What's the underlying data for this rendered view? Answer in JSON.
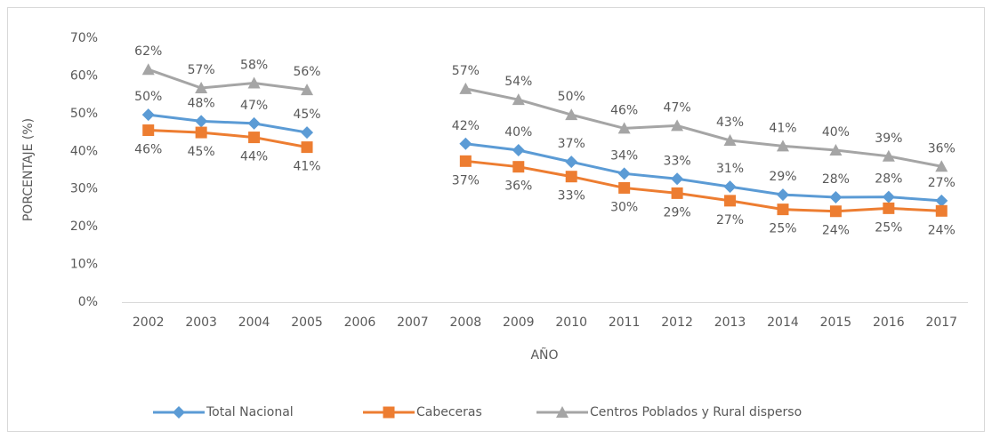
{
  "chart_data": {
    "type": "line",
    "y_label": "PORCENTAJE (%)",
    "x_label": "AÑO",
    "categories": [
      "2002",
      "2003",
      "2004",
      "2005",
      "2006",
      "2007",
      "2008",
      "2009",
      "2010",
      "2011",
      "2012",
      "2013",
      "2014",
      "2015",
      "2016",
      "2017"
    ],
    "ylim": [
      0,
      70
    ],
    "yticks": [
      {
        "value": 0,
        "label": "0%"
      },
      {
        "value": 10,
        "label": "10%"
      },
      {
        "value": 20,
        "label": "20%"
      },
      {
        "value": 30,
        "label": "30%"
      },
      {
        "value": 40,
        "label": "40%"
      },
      {
        "value": 50,
        "label": "50%"
      },
      {
        "value": 60,
        "label": "60%"
      },
      {
        "value": 70,
        "label": "70%"
      }
    ],
    "grid": false,
    "legend": "bottom",
    "series": [
      {
        "name": "Total Nacional",
        "color": "#5b9bd5",
        "marker": "diamond",
        "values": [
          49.7,
          48.0,
          47.4,
          45.0,
          null,
          null,
          42.0,
          40.3,
          37.2,
          34.1,
          32.7,
          30.6,
          28.5,
          27.8,
          27.9,
          26.9
        ],
        "value_labels": [
          "50%",
          "48%",
          "47%",
          "45%",
          null,
          null,
          "42%",
          "40%",
          "37%",
          "34%",
          "33%",
          "31%",
          "29%",
          "28%",
          "28%",
          "27%"
        ]
      },
      {
        "name": "Cabeceras",
        "color": "#ed7d31",
        "marker": "square",
        "values": [
          45.6,
          45.0,
          43.7,
          41.1,
          null,
          null,
          37.4,
          35.9,
          33.3,
          30.3,
          28.9,
          26.9,
          24.6,
          24.1,
          24.9,
          24.2
        ],
        "value_labels": [
          "46%",
          "45%",
          "44%",
          "41%",
          null,
          null,
          "37%",
          "36%",
          "33%",
          "30%",
          "29%",
          "27%",
          "25%",
          "24%",
          "25%",
          "24%"
        ]
      },
      {
        "name": "Centros Poblados y Rural disperso",
        "color": "#a5a5a5",
        "marker": "triangle",
        "values": [
          61.7,
          56.8,
          58.1,
          56.3,
          null,
          null,
          56.6,
          53.7,
          49.7,
          46.1,
          46.8,
          42.9,
          41.4,
          40.3,
          38.7,
          36.0
        ],
        "value_labels": [
          "62%",
          "57%",
          "58%",
          "56%",
          null,
          null,
          "57%",
          "54%",
          "50%",
          "46%",
          "47%",
          "43%",
          "41%",
          "40%",
          "39%",
          "36%"
        ]
      }
    ]
  }
}
